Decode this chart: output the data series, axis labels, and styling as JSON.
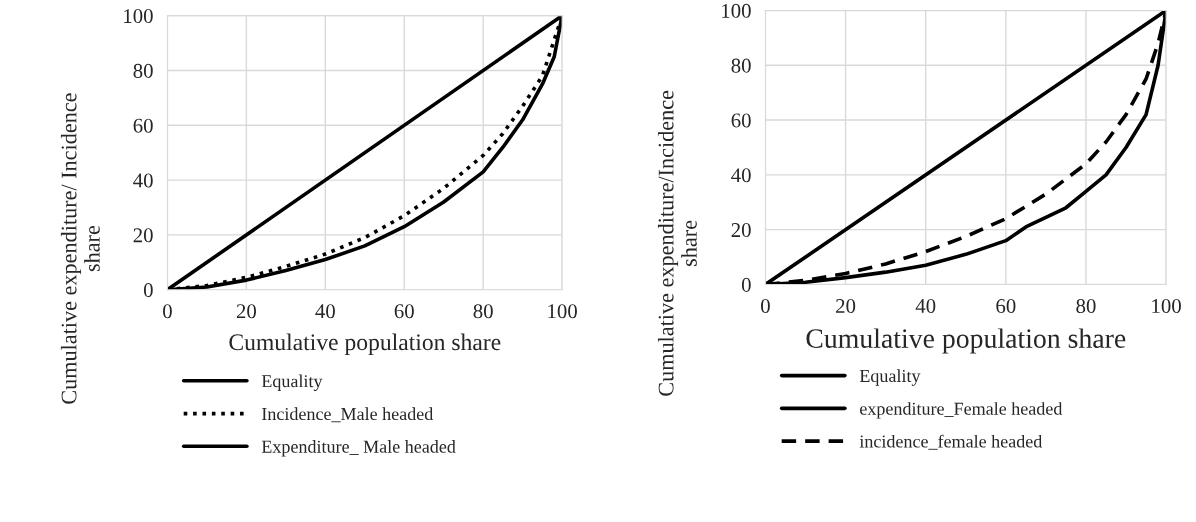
{
  "chart_data": [
    {
      "type": "line",
      "xlabel": "Cumulative population share",
      "ylabel": "Cumulative expenditure/ Incidence\nshare",
      "xlim": [
        0,
        100
      ],
      "ylim": [
        0,
        100
      ],
      "xticks": [
        0,
        20,
        40,
        60,
        80,
        100
      ],
      "yticks": [
        0,
        20,
        40,
        60,
        80,
        100
      ],
      "grid": true,
      "legend": "bottom",
      "series": [
        {
          "name": "Equality",
          "color": "#000000",
          "line_style": "solid",
          "x": [
            0,
            100
          ],
          "values": [
            0,
            100
          ]
        },
        {
          "name": "Incidence_Male headed",
          "color": "#000000",
          "line_style": "dotted",
          "x": [
            0,
            10,
            20,
            30,
            40,
            50,
            60,
            70,
            80,
            85,
            90,
            95,
            100
          ],
          "values": [
            0,
            1.5,
            4.5,
            8.5,
            13,
            19,
            27,
            37,
            49,
            57,
            67,
            78,
            100
          ]
        },
        {
          "name": "Expenditure_ Male headed",
          "color": "#000000",
          "line_style": "solid",
          "x": [
            0,
            10,
            20,
            30,
            40,
            50,
            60,
            70,
            80,
            85,
            90,
            95,
            98,
            100
          ],
          "values": [
            0,
            1,
            3.5,
            7,
            11,
            16,
            23,
            32,
            43,
            52,
            62,
            75,
            85,
            100
          ]
        }
      ]
    },
    {
      "type": "line",
      "xlabel": "Cumulative population share",
      "ylabel": "Cumulative expenditure/Incidence\nshare",
      "xlim": [
        0,
        100
      ],
      "ylim": [
        0,
        100
      ],
      "xticks": [
        0,
        20,
        40,
        60,
        80,
        100
      ],
      "yticks": [
        0,
        20,
        40,
        60,
        80,
        100
      ],
      "grid": true,
      "legend": "bottom",
      "series": [
        {
          "name": "Equality",
          "color": "#000000",
          "line_style": "solid",
          "x": [
            0,
            100
          ],
          "values": [
            0,
            100
          ]
        },
        {
          "name": "expenditure_Female headed",
          "color": "#000000",
          "line_style": "solid",
          "x": [
            0,
            10,
            20,
            30,
            40,
            50,
            60,
            65,
            75,
            80,
            85,
            90,
            95,
            98,
            100
          ],
          "values": [
            0,
            0.8,
            2.5,
            4.5,
            7,
            11,
            16,
            21,
            28,
            34,
            40,
            50,
            62,
            80,
            100
          ]
        },
        {
          "name": "incidence_female headed",
          "color": "#000000",
          "line_style": "dashed",
          "x": [
            0,
            10,
            20,
            30,
            40,
            50,
            60,
            70,
            80,
            85,
            90,
            95,
            98,
            100
          ],
          "values": [
            0,
            1.5,
            4,
            7.5,
            12,
            17.5,
            24,
            33,
            44,
            52,
            62,
            75,
            88,
            100
          ]
        }
      ]
    }
  ]
}
